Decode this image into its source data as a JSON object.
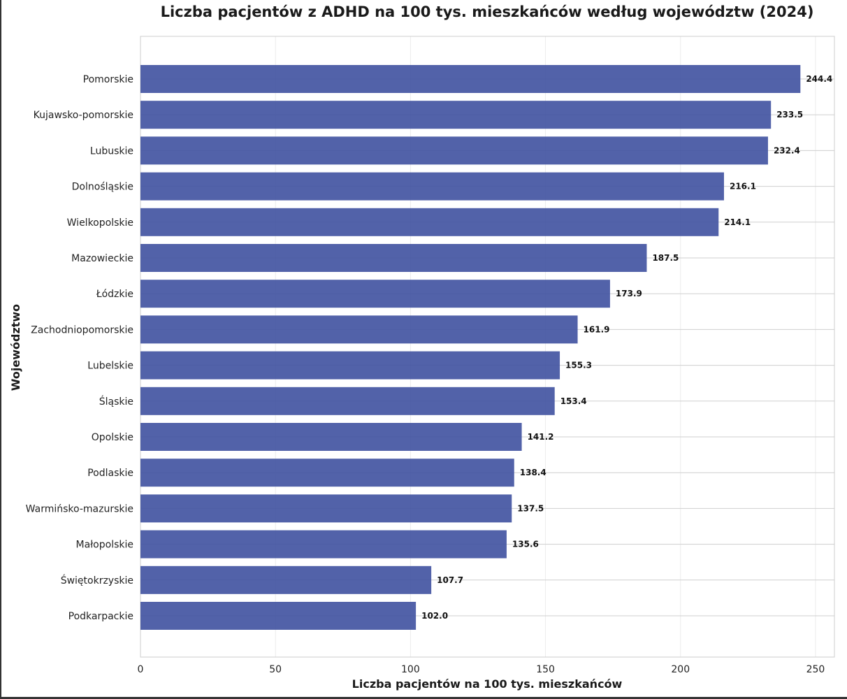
{
  "chart_data": {
    "type": "bar",
    "orientation": "horizontal",
    "title": "Liczba pacjentów z ADHD na 100 tys. mieszkańców według województw (2024)",
    "xlabel": "Liczba pacjentów na 100 tys. mieszkańców",
    "ylabel": "Województwo",
    "xlim": [
      0,
      257
    ],
    "xticks": [
      0,
      50,
      100,
      150,
      200,
      250
    ],
    "grid": true,
    "bar_color": "#3f51a0",
    "categories": [
      "Pomorskie",
      "Kujawsko-pomorskie",
      "Lubuskie",
      "Dolnośląskie",
      "Wielkopolskie",
      "Mazowieckie",
      "Łódzkie",
      "Zachodniopomorskie",
      "Lubelskie",
      "Śląskie",
      "Opolskie",
      "Podlaskie",
      "Warmińsko-mazurskie",
      "Małopolskie",
      "Świętokrzyskie",
      "Podkarpackie"
    ],
    "values": [
      244.4,
      233.5,
      232.4,
      216.1,
      214.1,
      187.5,
      173.9,
      161.9,
      155.3,
      153.4,
      141.2,
      138.4,
      137.5,
      135.6,
      107.7,
      102.0
    ],
    "value_labels": [
      "244.4",
      "233.5",
      "232.4",
      "216.1",
      "214.1",
      "187.5",
      "173.9",
      "161.9",
      "155.3",
      "153.4",
      "141.2",
      "138.4",
      "137.5",
      "135.6",
      "107.7",
      "102.0"
    ]
  }
}
